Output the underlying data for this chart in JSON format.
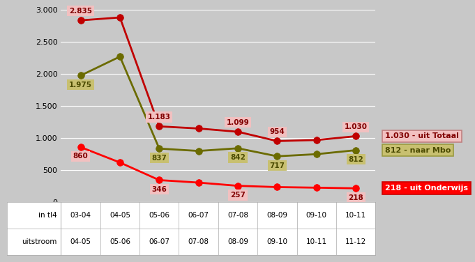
{
  "x_labels_top": [
    "03-04",
    "04-05",
    "05-06",
    "06-07",
    "07-08",
    "08-09",
    "09-10",
    "10-11"
  ],
  "x_labels_bottom": [
    "04-05",
    "05-06",
    "06-07",
    "07-08",
    "08-09",
    "09-10",
    "10-11",
    "11-12"
  ],
  "x_indices": [
    0,
    1,
    2,
    3,
    4,
    5,
    6,
    7
  ],
  "series_totaal": [
    2835,
    2880,
    1183,
    1150,
    1099,
    954,
    970,
    1030
  ],
  "series_mbo": [
    1975,
    2270,
    837,
    800,
    842,
    717,
    750,
    812
  ],
  "series_onderwijs": [
    860,
    620,
    346,
    307,
    257,
    237,
    228,
    218
  ],
  "color_totaal": "#c00000",
  "color_mbo": "#6b6b00",
  "color_onderwijs": "#ff0000",
  "bg_plot": "#c8c8c8",
  "bg_fig": "#c8c8c8",
  "bg_table": "#ffffff",
  "ylim": [
    0,
    3000
  ],
  "yticks": [
    0,
    500,
    1000,
    1500,
    2000,
    2500,
    3000
  ],
  "ytick_labels": [
    "0",
    "500",
    "1.000",
    "1.500",
    "2.000",
    "2.500",
    "3.000"
  ],
  "legend_totaal": "1.030 - uit Totaal",
  "legend_mbo": "812 - naar Mbo",
  "legend_onderwijs": "218 - uit Onderwijs",
  "legend_bg_totaal": "#f2c0c0",
  "legend_bg_mbo": "#c8c070",
  "legend_bg_onderwijs": "#ff0000",
  "legend_fg_totaal": "#800000",
  "legend_fg_mbo": "#4a4a00",
  "legend_fg_onderwijs": "#ffffff",
  "legend_border_totaal": "#c08080",
  "legend_border_mbo": "#9a9a40",
  "legend_border_onderwijs": "#cc0000",
  "header_col1": "in tl4",
  "header_col2": "uitstroom",
  "grid_color": "#ffffff",
  "marker_size": 7,
  "line_width": 2.0,
  "label_totaal_indices": [
    0,
    2,
    4,
    5,
    7
  ],
  "label_mbo_indices": [
    0,
    2,
    4,
    5,
    7
  ],
  "label_onderwijs_indices": [
    0,
    2,
    4,
    7
  ],
  "label_totaal_values": [
    2835,
    1183,
    1099,
    954,
    1030
  ],
  "label_mbo_values": [
    1975,
    837,
    842,
    717,
    812
  ],
  "label_onderwijs_values": [
    860,
    346,
    257,
    218
  ]
}
